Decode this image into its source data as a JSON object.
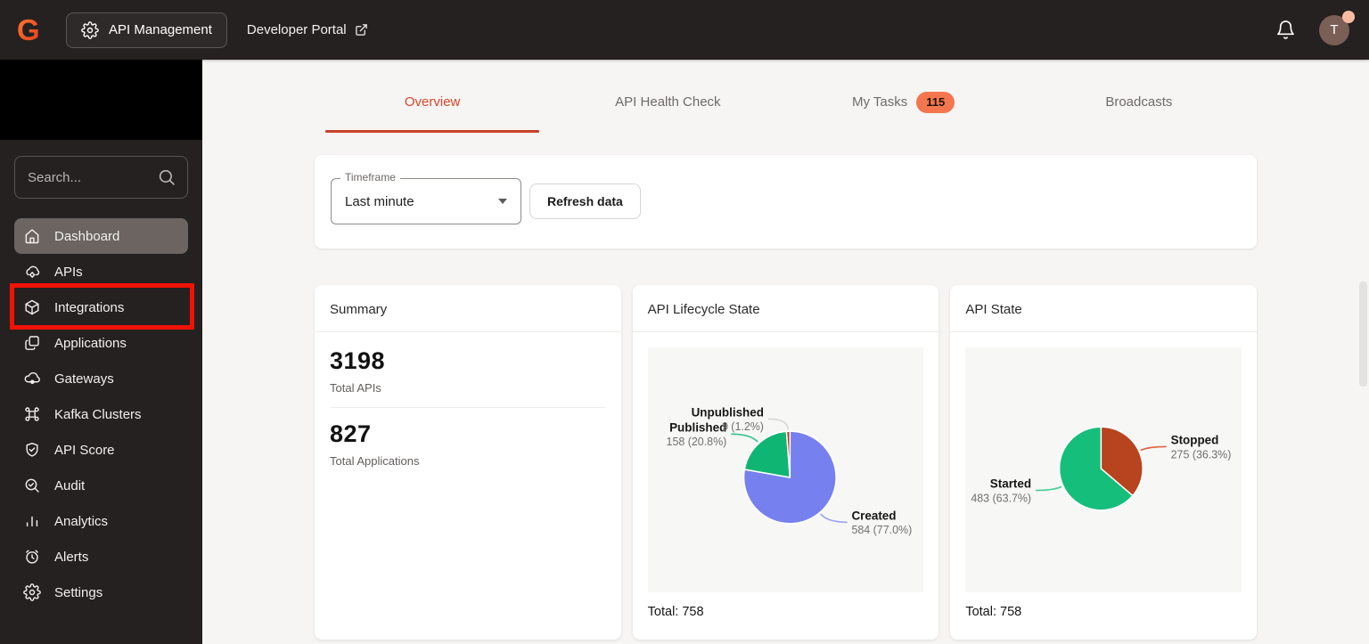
{
  "topbar": {
    "logo_letter": "G",
    "app_switcher": "API Management",
    "dev_portal": "Developer Portal",
    "avatar_initial": "T"
  },
  "sidebar": {
    "search_placeholder": "Search...",
    "items": [
      {
        "label": "Dashboard",
        "icon": "home",
        "active": true
      },
      {
        "label": "APIs",
        "icon": "cloud-gear"
      },
      {
        "label": "Integrations",
        "icon": "cube",
        "highlighted": true
      },
      {
        "label": "Applications",
        "icon": "stacked-squares"
      },
      {
        "label": "Gateways",
        "icon": "cloud-node"
      },
      {
        "label": "Kafka Clusters",
        "icon": "command"
      },
      {
        "label": "API Score",
        "icon": "shield-check"
      },
      {
        "label": "Audit",
        "icon": "search-check"
      },
      {
        "label": "Analytics",
        "icon": "bar-chart"
      },
      {
        "label": "Alerts",
        "icon": "alarm-clock"
      },
      {
        "label": "Settings",
        "icon": "gear"
      }
    ]
  },
  "tabs": [
    {
      "label": "Overview",
      "active": true
    },
    {
      "label": "API Health Check"
    },
    {
      "label": "My Tasks",
      "badge": "115"
    },
    {
      "label": "Broadcasts"
    }
  ],
  "filters": {
    "timeframe_label": "Timeframe",
    "timeframe_value": "Last minute",
    "refresh_button": "Refresh data"
  },
  "summary_card": {
    "title": "Summary",
    "stats": [
      {
        "value": "3198",
        "label": "Total APIs"
      },
      {
        "value": "827",
        "label": "Total Applications"
      }
    ]
  },
  "chart_data": [
    {
      "type": "pie",
      "title": "API Lifecycle State",
      "total": 758,
      "total_label": "Total: 758",
      "legend_position": "none",
      "slices": [
        {
          "label": "Created",
          "value": 584,
          "pct_label": "77.0%",
          "color": "#7680EE",
          "leader_color": "#98A0F4"
        },
        {
          "label": "Published",
          "value": 158,
          "pct_label": "20.8%",
          "color": "#0FB573",
          "leader_color": "#2EC489"
        },
        {
          "label": "Unpublished",
          "value": 9,
          "pct_label": "1.2%",
          "color": "#C63C20",
          "leader_color": "#D9D7D6"
        }
      ]
    },
    {
      "type": "pie",
      "title": "API State",
      "total": 758,
      "total_label": "Total: 758",
      "legend_position": "none",
      "slices": [
        {
          "label": "Stopped",
          "value": 275,
          "pct_label": "36.3%",
          "color": "#B8431F",
          "leader_color": "#E0613D"
        },
        {
          "label": "Started",
          "value": 483,
          "pct_label": "63.7%",
          "color": "#16BE7C",
          "leader_color": "#45CD96"
        }
      ]
    }
  ],
  "colors": {
    "topbar_bg": "#252120",
    "sidebar_bg": "#252120",
    "active_nav_bg": "#6B6461",
    "accent": "#D5472A",
    "badge_bg": "#F3764F",
    "annotation_red": "#F01205",
    "page_bg": "#F6F5F4",
    "card_bg": "#FFFFFF",
    "chart_area_bg": "#F7F7F6",
    "avatar_bg": "#7A5F56",
    "avatar_dot": "#F9BCA2"
  }
}
